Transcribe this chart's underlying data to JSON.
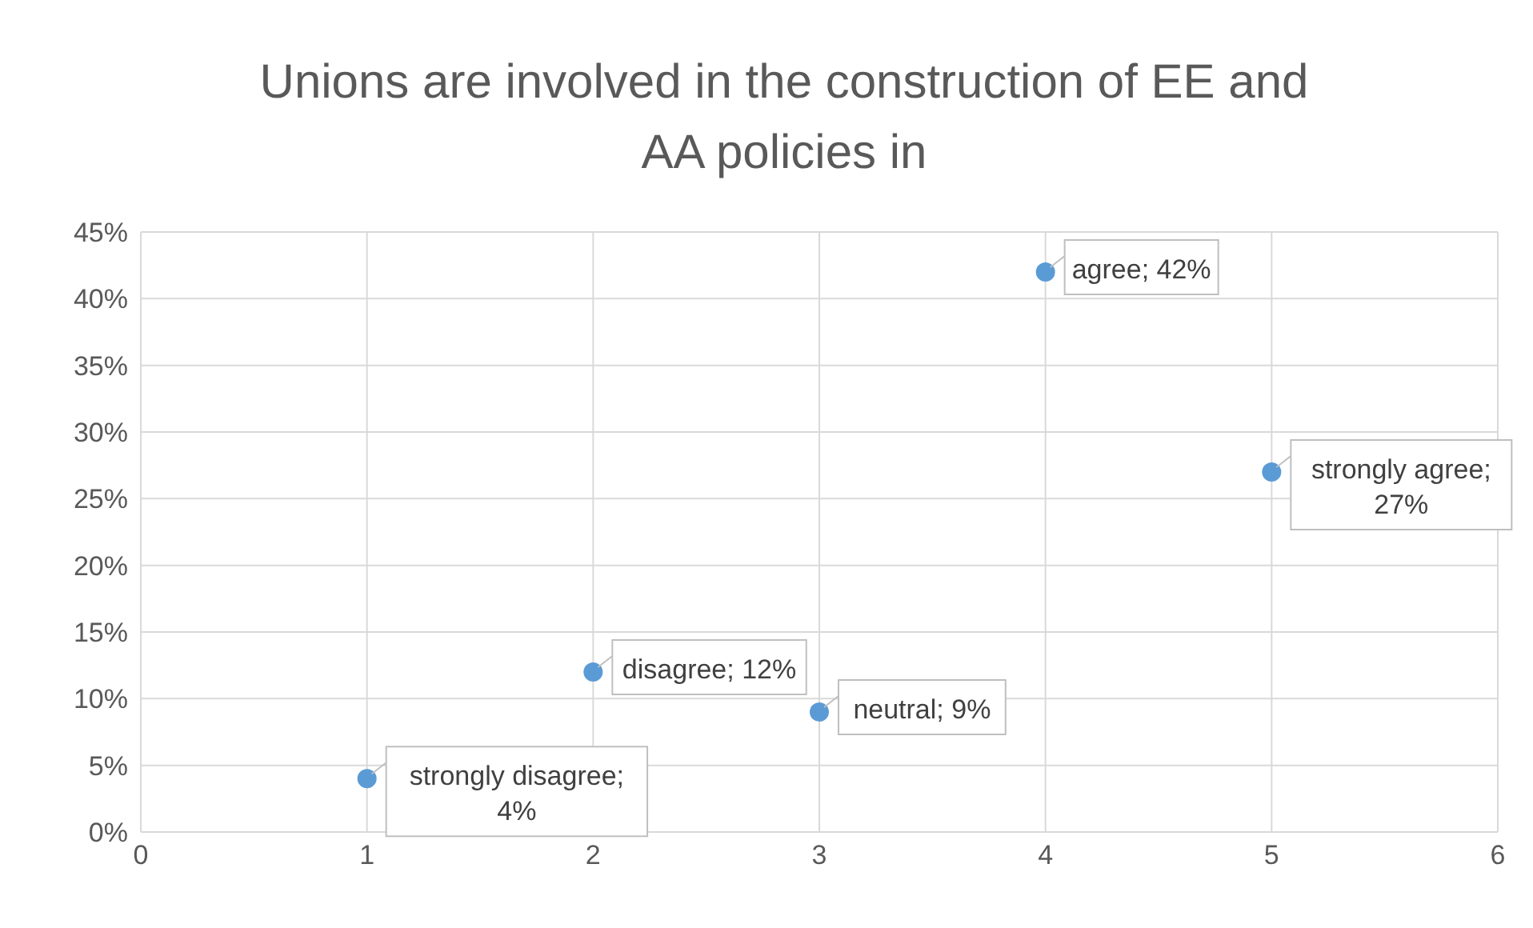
{
  "chart_data": {
    "type": "scatter",
    "title": "Unions are involved in the construction of EE and AA policies in",
    "x": [
      1,
      2,
      3,
      4,
      5
    ],
    "values": [
      4,
      12,
      9,
      42,
      27
    ],
    "value_labels": [
      "strongly disagree; 4%",
      "disagree; 12%",
      "neutral; 9%",
      "agree; 42%",
      "strongly agree; 27%"
    ],
    "color": "#5b9bd5",
    "marker": "circle",
    "grid": true,
    "xlim": [
      0,
      6
    ],
    "xticks": [
      0,
      1,
      2,
      3,
      4,
      5,
      6
    ],
    "ylim": [
      0,
      45
    ],
    "yticks": [
      {
        "value": 0,
        "label": "0%"
      },
      {
        "value": 5,
        "label": "5%"
      },
      {
        "value": 10,
        "label": "10%"
      },
      {
        "value": 15,
        "label": "15%"
      },
      {
        "value": 20,
        "label": "20%"
      },
      {
        "value": 25,
        "label": "25%"
      },
      {
        "value": 30,
        "label": "30%"
      },
      {
        "value": 35,
        "label": "35%"
      },
      {
        "value": 40,
        "label": "40%"
      },
      {
        "value": 45,
        "label": "45%"
      }
    ]
  }
}
